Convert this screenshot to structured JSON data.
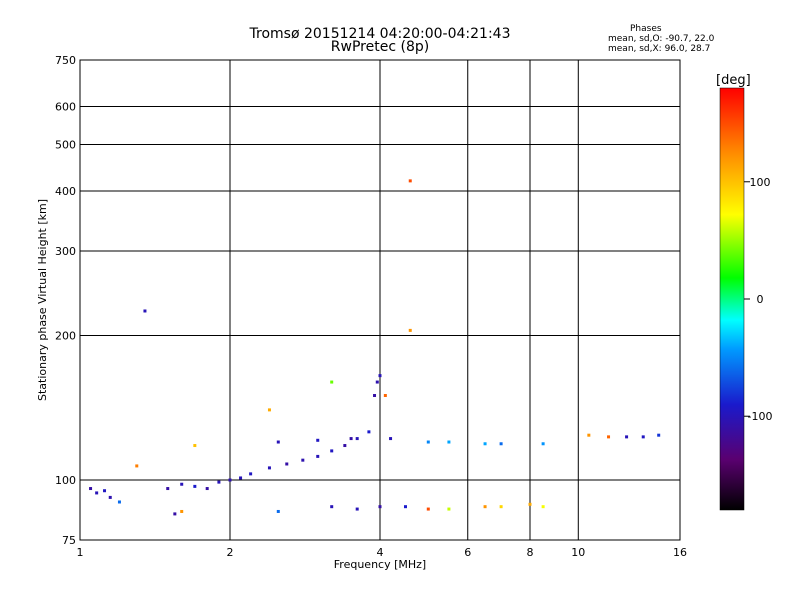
{
  "chart_data": {
    "type": "scatter",
    "title": "Tromsø 20151214 04:20:00-04:21:43",
    "subtitle": "RwPretec (8p)",
    "xlabel": "Frequency [MHz]",
    "ylabel": "Stationary phase Virtual Height [km]",
    "x_scale": "log",
    "y_scale": "log",
    "xlim": [
      1,
      16
    ],
    "ylim": [
      75,
      750
    ],
    "x_ticks": [
      1,
      2,
      4,
      6,
      8,
      10,
      16
    ],
    "y_ticks": [
      75,
      100,
      200,
      300,
      400,
      500,
      600,
      750
    ],
    "grid": true,
    "stats": {
      "heading": "Phases",
      "line_o": "mean, sd,O: -90.7, 22.0",
      "line_x": "mean, sd,X:  96.0, 28.7"
    },
    "colorbar": {
      "label": "[deg]",
      "range": [
        -180,
        180
      ],
      "ticks": [
        100,
        0,
        -100
      ]
    },
    "series": [
      {
        "points": [
          [
            1.05,
            96,
            -110
          ],
          [
            1.08,
            94,
            -100
          ],
          [
            1.12,
            95,
            -95
          ],
          [
            1.15,
            92,
            -105
          ],
          [
            1.2,
            90,
            -60
          ],
          [
            1.35,
            225,
            -100
          ],
          [
            1.5,
            96,
            -110
          ],
          [
            1.6,
            98,
            -100
          ],
          [
            1.7,
            97,
            -90
          ],
          [
            1.8,
            96,
            -110
          ],
          [
            1.9,
            99,
            -100
          ],
          [
            2.0,
            100,
            -105
          ],
          [
            2.1,
            101,
            -100
          ],
          [
            2.2,
            103,
            -95
          ],
          [
            2.4,
            106,
            -100
          ],
          [
            2.6,
            108,
            -110
          ],
          [
            2.8,
            110,
            -105
          ],
          [
            3.0,
            112,
            -100
          ],
          [
            3.2,
            115,
            -95
          ],
          [
            3.4,
            118,
            -110
          ],
          [
            3.6,
            122,
            -100
          ],
          [
            3.8,
            126,
            -90
          ],
          [
            3.9,
            150,
            -110
          ],
          [
            3.95,
            160,
            -105
          ],
          [
            4.0,
            165,
            -100
          ],
          [
            2.5,
            120,
            -100
          ],
          [
            3.0,
            121,
            -95
          ],
          [
            3.5,
            122,
            -110
          ],
          [
            4.2,
            122,
            -100
          ],
          [
            5.0,
            120,
            -50
          ],
          [
            5.5,
            120,
            -40
          ],
          [
            6.5,
            119,
            -40
          ],
          [
            7.0,
            119,
            -60
          ],
          [
            8.5,
            119,
            -45
          ],
          [
            10.5,
            124,
            120
          ],
          [
            11.5,
            123,
            140
          ],
          [
            12.5,
            123,
            -100
          ],
          [
            13.5,
            123,
            -95
          ],
          [
            14.5,
            124,
            -80
          ],
          [
            3.2,
            88,
            -100
          ],
          [
            3.6,
            87,
            -100
          ],
          [
            4.0,
            88,
            -110
          ],
          [
            4.5,
            88,
            -90
          ],
          [
            5.0,
            87,
            150
          ],
          [
            5.5,
            87,
            60
          ],
          [
            6.5,
            88,
            120
          ],
          [
            7.0,
            88,
            90
          ],
          [
            8.0,
            89,
            110
          ],
          [
            8.5,
            88,
            70
          ],
          [
            2.5,
            86,
            -60
          ],
          [
            1.55,
            85,
            -110
          ],
          [
            1.6,
            86,
            120
          ],
          [
            4.6,
            420,
            150
          ],
          [
            4.6,
            205,
            120
          ],
          [
            4.1,
            150,
            140
          ],
          [
            3.2,
            160,
            40
          ],
          [
            1.7,
            118,
            100
          ],
          [
            1.3,
            107,
            130
          ],
          [
            2.4,
            140,
            110
          ]
        ]
      }
    ]
  }
}
